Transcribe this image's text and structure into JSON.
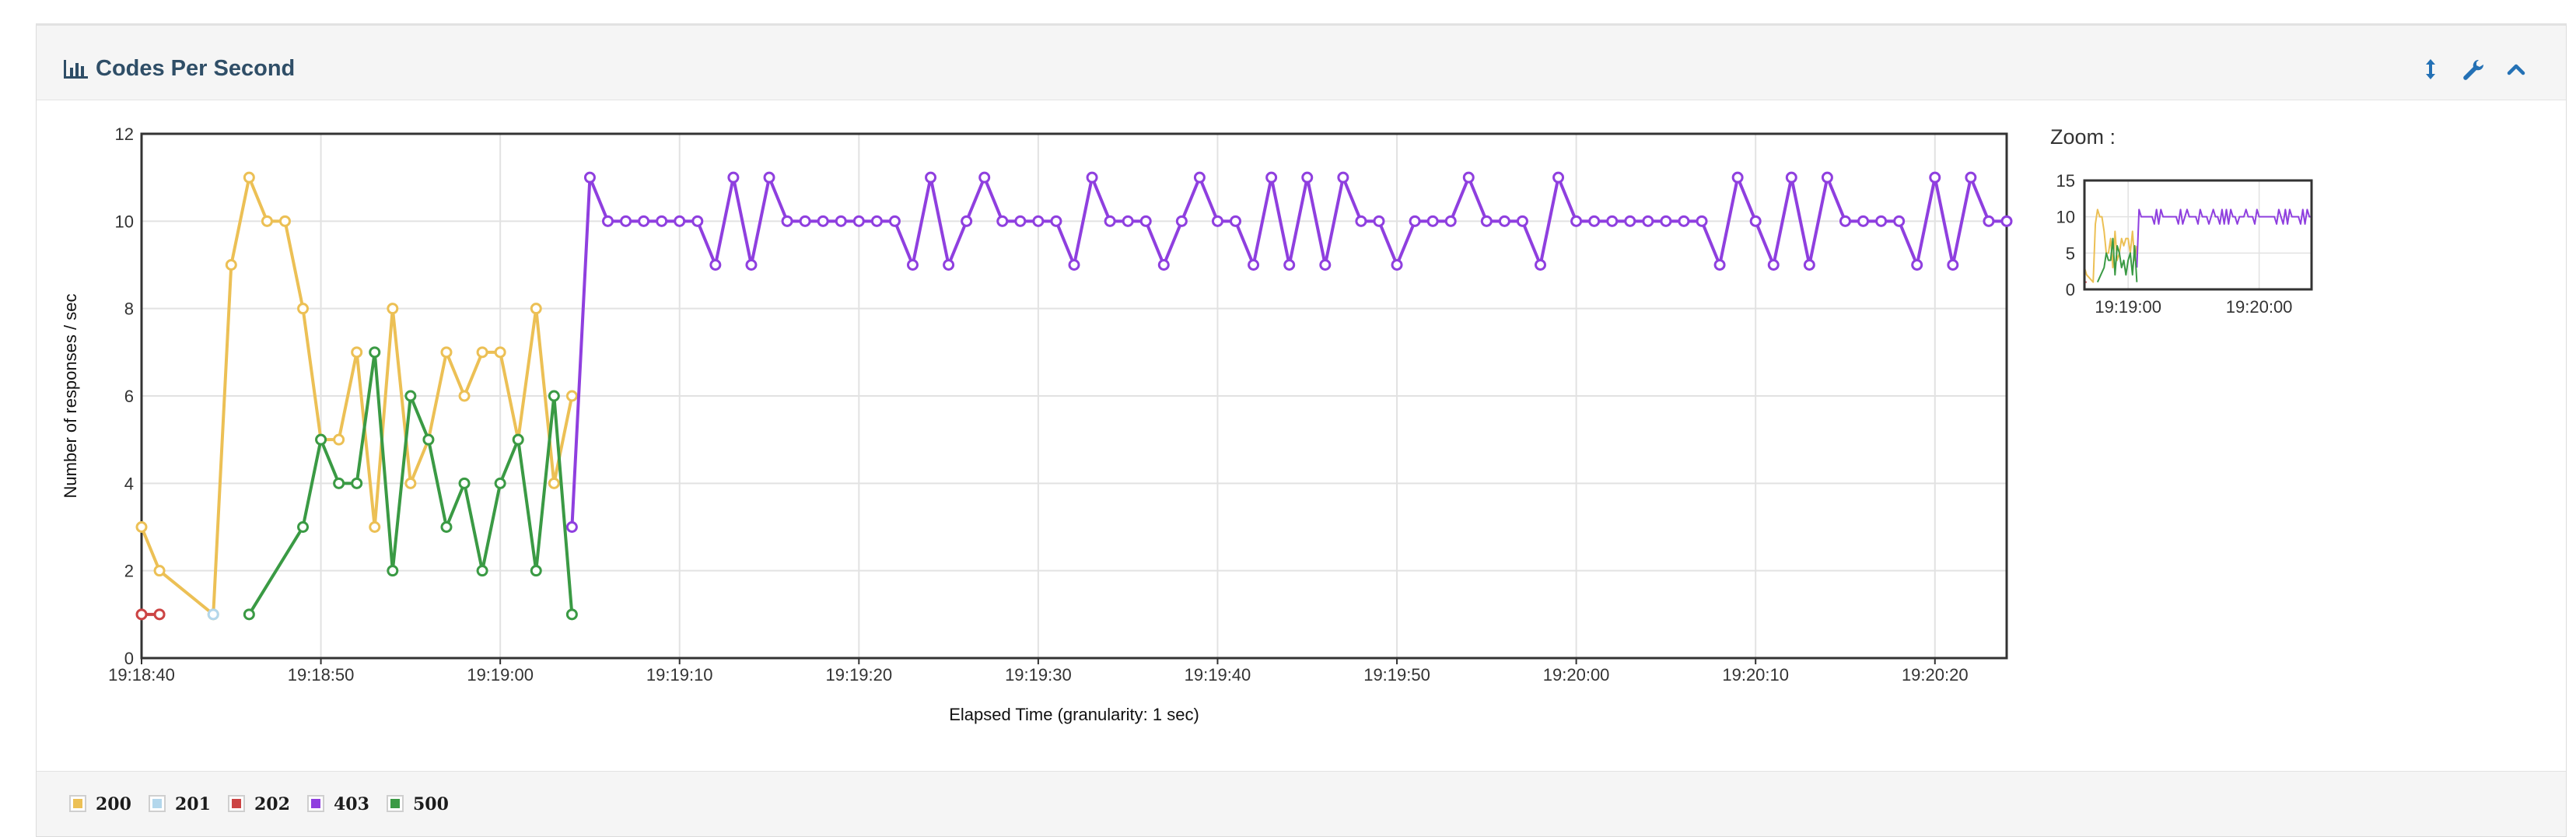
{
  "panel": {
    "title": "Codes Per Second",
    "icons": {
      "title": "bar-chart-icon",
      "resize": "vertical-resize-icon",
      "settings": "wrench-icon",
      "collapse": "chevron-up-icon"
    }
  },
  "colors": {
    "200": "#ecc055",
    "201": "#b3d7ec",
    "202": "#cc4444",
    "403": "#8f3fdf",
    "500": "#3a9a44"
  },
  "chart_data": {
    "type": "line",
    "title": "",
    "xlabel": "Elapsed Time (granularity: 1 sec)",
    "ylabel": "Number of responses / sec",
    "ylim": [
      0,
      12
    ],
    "yticks": [
      "0",
      "2",
      "4",
      "6",
      "8",
      "10",
      "12"
    ],
    "xlim": [
      "19:18:40",
      "19:20:24"
    ],
    "xticks": [
      "19:18:40",
      "19:18:50",
      "19:19:00",
      "19:19:10",
      "19:19:20",
      "19:19:30",
      "19:19:40",
      "19:19:50",
      "19:20:00",
      "19:20:10",
      "19:20:20"
    ],
    "grid": true,
    "legend_position": "bottom",
    "series": [
      {
        "name": "200",
        "x": [
          "19:18:40",
          "19:18:41",
          "19:18:44",
          "19:18:45",
          "19:18:46",
          "19:18:47",
          "19:18:48",
          "19:18:49",
          "19:18:50",
          "19:18:51",
          "19:18:52",
          "19:18:53",
          "19:18:54",
          "19:18:55",
          "19:18:56",
          "19:18:57",
          "19:18:58",
          "19:18:59",
          "19:19:00",
          "19:19:01",
          "19:19:02",
          "19:19:03",
          "19:19:04"
        ],
        "values": [
          3,
          2,
          1,
          9,
          11,
          10,
          10,
          8,
          5,
          5,
          7,
          3,
          8,
          4,
          5,
          7,
          6,
          7,
          7,
          5,
          8,
          4,
          6
        ]
      },
      {
        "name": "201",
        "x": [
          "19:18:44"
        ],
        "values": [
          1
        ]
      },
      {
        "name": "202",
        "x": [
          "19:18:40",
          "19:18:41"
        ],
        "values": [
          1,
          1
        ]
      },
      {
        "name": "403",
        "x": [
          "19:19:04",
          "19:19:05",
          "19:19:06",
          "19:19:07",
          "19:19:08",
          "19:19:09",
          "19:19:10",
          "19:19:11",
          "19:19:12",
          "19:19:13",
          "19:19:14",
          "19:19:15",
          "19:19:16",
          "19:19:17",
          "19:19:18",
          "19:19:19",
          "19:19:20",
          "19:19:21",
          "19:19:22",
          "19:19:23",
          "19:19:24",
          "19:19:25",
          "19:19:26",
          "19:19:27",
          "19:19:28",
          "19:19:29",
          "19:19:30",
          "19:19:31",
          "19:19:32",
          "19:19:33",
          "19:19:34",
          "19:19:35",
          "19:19:36",
          "19:19:37",
          "19:19:38",
          "19:19:39",
          "19:19:40",
          "19:19:41",
          "19:19:42",
          "19:19:43",
          "19:19:44",
          "19:19:45",
          "19:19:46",
          "19:19:47",
          "19:19:48",
          "19:19:49",
          "19:19:50",
          "19:19:51",
          "19:19:52",
          "19:19:53",
          "19:19:54",
          "19:19:55",
          "19:19:56",
          "19:19:57",
          "19:19:58",
          "19:19:59",
          "19:20:00",
          "19:20:01",
          "19:20:02",
          "19:20:03",
          "19:20:04",
          "19:20:05",
          "19:20:06",
          "19:20:07",
          "19:20:08",
          "19:20:09",
          "19:20:10",
          "19:20:11",
          "19:20:12",
          "19:20:13",
          "19:20:14",
          "19:20:15",
          "19:20:16",
          "19:20:17",
          "19:20:18",
          "19:20:19",
          "19:20:20",
          "19:20:21",
          "19:20:22",
          "19:20:23",
          "19:20:24"
        ],
        "values": [
          3,
          11,
          10,
          10,
          10,
          10,
          10,
          10,
          9,
          11,
          9,
          11,
          10,
          10,
          10,
          10,
          10,
          10,
          10,
          9,
          11,
          9,
          10,
          11,
          10,
          10,
          10,
          10,
          9,
          11,
          10,
          10,
          10,
          9,
          10,
          11,
          10,
          10,
          9,
          11,
          9,
          11,
          9,
          11,
          10,
          10,
          9,
          10,
          10,
          10,
          11,
          10,
          10,
          10,
          9,
          11,
          10,
          10,
          10,
          10,
          10,
          10,
          10,
          10,
          9,
          11,
          10,
          9,
          11,
          9,
          11,
          10,
          10,
          10,
          10,
          9,
          11,
          9,
          11,
          10,
          10
        ]
      },
      {
        "name": "500",
        "x": [
          "19:18:46",
          "19:18:49",
          "19:18:50",
          "19:18:51",
          "19:18:52",
          "19:18:53",
          "19:18:54",
          "19:18:55",
          "19:18:56",
          "19:18:57",
          "19:18:58",
          "19:18:59",
          "19:19:00",
          "19:19:01",
          "19:19:02",
          "19:19:03",
          "19:19:04"
        ],
        "values": [
          1,
          3,
          5,
          4,
          4,
          7,
          2,
          6,
          5,
          3,
          4,
          2,
          4,
          5,
          2,
          6,
          1
        ]
      }
    ],
    "zoom": {
      "label": "Zoom :",
      "ylim": [
        0,
        15
      ],
      "yticks": [
        "0",
        "5",
        "10",
        "15"
      ],
      "xticks": [
        "19:19:00",
        "19:20:00"
      ]
    }
  }
}
